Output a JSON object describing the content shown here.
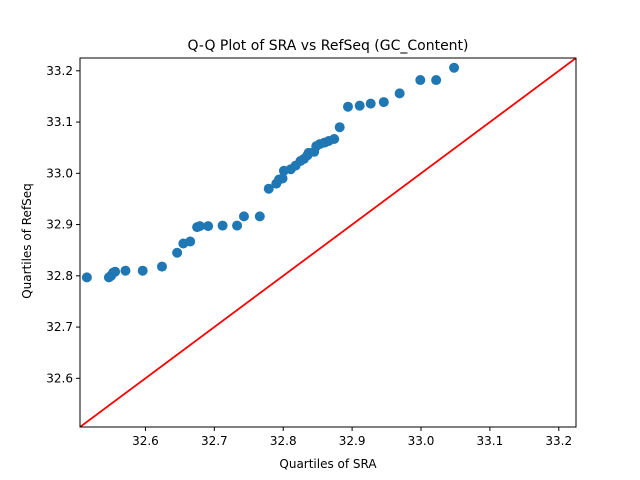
{
  "chart_data": {
    "type": "scatter",
    "title": "Q-Q Plot of SRA vs RefSeq (GC_Content)",
    "xlabel": "Quartiles of SRA",
    "ylabel": "Quartiles of RefSeq",
    "xlim": [
      32.505,
      33.225
    ],
    "ylim": [
      32.505,
      33.225
    ],
    "xticks": [
      "32.6",
      "32.7",
      "32.8",
      "32.9",
      "33.0",
      "33.1",
      "33.2"
    ],
    "yticks": [
      "32.6",
      "32.7",
      "32.8",
      "32.9",
      "33.0",
      "33.1",
      "33.2"
    ],
    "xtick_values": [
      32.6,
      32.7,
      32.8,
      32.9,
      33.0,
      33.1,
      33.2
    ],
    "ytick_values": [
      32.6,
      32.7,
      32.8,
      32.9,
      33.0,
      33.1,
      33.2
    ],
    "grid": false,
    "legend": "none",
    "marker_color": "#1f77b4",
    "reference_line": {
      "type": "y=x",
      "color": "#ff0000"
    },
    "series": [
      {
        "points": [
          [
            32.515,
            32.797
          ],
          [
            32.547,
            32.797
          ],
          [
            32.55,
            32.8
          ],
          [
            32.553,
            32.806
          ],
          [
            32.556,
            32.808
          ],
          [
            32.571,
            32.81
          ],
          [
            32.596,
            32.81
          ],
          [
            32.624,
            32.818
          ],
          [
            32.646,
            32.845
          ],
          [
            32.655,
            32.863
          ],
          [
            32.665,
            32.867
          ],
          [
            32.675,
            32.895
          ],
          [
            32.679,
            32.897
          ],
          [
            32.691,
            32.897
          ],
          [
            32.712,
            32.898
          ],
          [
            32.733,
            32.898
          ],
          [
            32.743,
            32.916
          ],
          [
            32.766,
            32.916
          ],
          [
            32.779,
            32.97
          ],
          [
            32.79,
            32.98
          ],
          [
            32.794,
            32.988
          ],
          [
            32.799,
            32.99
          ],
          [
            32.801,
            33.005
          ],
          [
            32.811,
            33.008
          ],
          [
            32.818,
            33.015
          ],
          [
            32.825,
            33.024
          ],
          [
            32.83,
            33.028
          ],
          [
            32.835,
            33.035
          ],
          [
            32.837,
            33.04
          ],
          [
            32.845,
            33.042
          ],
          [
            32.848,
            33.053
          ],
          [
            32.853,
            33.057
          ],
          [
            32.86,
            33.06
          ],
          [
            32.866,
            33.063
          ],
          [
            32.874,
            33.067
          ],
          [
            32.882,
            33.09
          ],
          [
            32.894,
            33.13
          ],
          [
            32.911,
            33.132
          ],
          [
            32.927,
            33.136
          ],
          [
            32.946,
            33.139
          ],
          [
            32.969,
            33.156
          ],
          [
            32.999,
            33.182
          ],
          [
            33.022,
            33.182
          ],
          [
            33.048,
            33.206
          ]
        ]
      }
    ]
  }
}
